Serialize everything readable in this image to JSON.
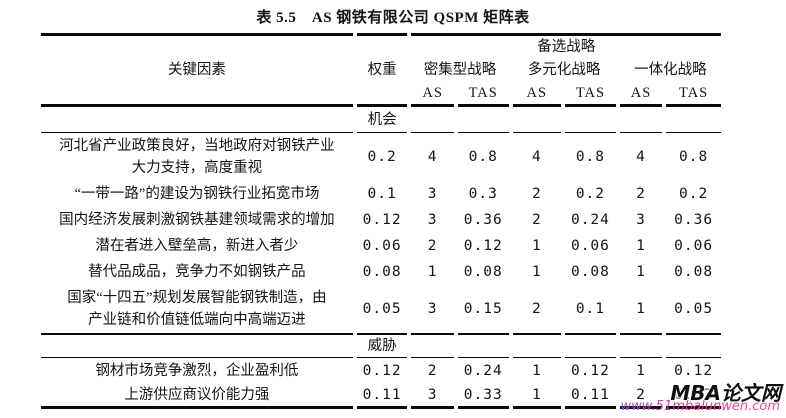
{
  "page": {
    "title": "表 5.5　AS 钢铁有限公司 QSPM 矩阵表"
  },
  "table": {
    "headers": {
      "key_factors": "关键因素",
      "weight": "权重",
      "alternative_strategies": "备选战略",
      "groups": [
        {
          "label": "密集型战略"
        },
        {
          "label": "多元化战略"
        },
        {
          "label": "一体化战略"
        }
      ],
      "as": "AS",
      "tas": "TAS"
    },
    "sections": [
      {
        "label": "机会",
        "rows": [
          {
            "factor": "河北省产业政策良好，当地政府对钢铁产业\n大力支持，高度重视",
            "weight": "0.2",
            "values": [
              "4",
              "0.8",
              "4",
              "0.8",
              "4",
              "0.8"
            ]
          },
          {
            "factor": "“一带一路”的建设为钢铁行业拓宽市场",
            "weight": "0.1",
            "values": [
              "3",
              "0.3",
              "2",
              "0.2",
              "2",
              "0.2"
            ]
          },
          {
            "factor": "国内经济发展刺激钢铁基建领域需求的增加",
            "weight": "0.12",
            "values": [
              "3",
              "0.36",
              "2",
              "0.24",
              "3",
              "0.36"
            ]
          },
          {
            "factor": "潜在者进入壁垒高，新进入者少",
            "weight": "0.06",
            "values": [
              "2",
              "0.12",
              "1",
              "0.06",
              "1",
              "0.06"
            ]
          },
          {
            "factor": "替代品成品，竞争力不如钢铁产品",
            "weight": "0.08",
            "values": [
              "1",
              "0.08",
              "1",
              "0.08",
              "1",
              "0.08"
            ]
          },
          {
            "factor": "国家“十四五”规划发展智能钢铁制造，由\n产业链和价值链低端向中高端迈进",
            "weight": "0.05",
            "values": [
              "3",
              "0.15",
              "2",
              "0.1",
              "1",
              "0.05"
            ]
          }
        ]
      },
      {
        "label": "威胁",
        "rows": [
          {
            "factor": "钢材市场竞争激烈，企业盈利低",
            "weight": "0.12",
            "values": [
              "2",
              "0.24",
              "1",
              "0.12",
              "1",
              "0.12"
            ]
          },
          {
            "factor": "上游供应商议价能力强",
            "weight": "0.11",
            "values": [
              "3",
              "0.33",
              "1",
              "0.11",
              "2",
              "0.22"
            ]
          }
        ]
      }
    ]
  },
  "watermark": {
    "site_name": "MBA论文网",
    "site_url": "www.51mbalunwen.com"
  }
}
